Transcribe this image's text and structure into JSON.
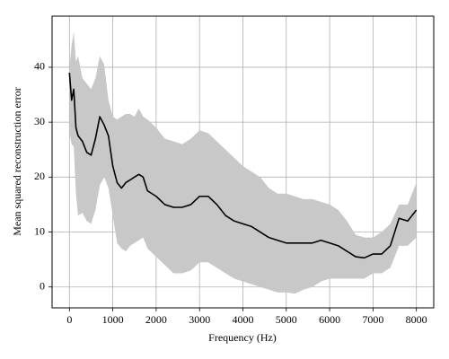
{
  "chart_data": {
    "type": "line",
    "xlabel": "Frequency (Hz)",
    "ylabel": "Mean squared reconstruction error",
    "x": [
      0,
      50,
      100,
      150,
      200,
      300,
      400,
      500,
      600,
      700,
      800,
      900,
      1000,
      1100,
      1200,
      1300,
      1400,
      1500,
      1600,
      1700,
      1800,
      2000,
      2200,
      2400,
      2600,
      2800,
      3000,
      3200,
      3400,
      3600,
      3800,
      4000,
      4200,
      4400,
      4600,
      4800,
      5000,
      5200,
      5400,
      5600,
      5800,
      6000,
      6200,
      6400,
      6600,
      6800,
      7000,
      7200,
      7400,
      7600,
      7800,
      8000
    ],
    "series": [
      {
        "color": "#000000",
        "band_color": "#c8c8c8",
        "values": [
          39,
          34,
          36,
          29,
          27.5,
          26.5,
          24.5,
          24,
          27,
          31,
          29.5,
          27.5,
          22,
          19,
          18,
          19,
          19.5,
          20,
          20.5,
          20,
          17.5,
          16.5,
          15,
          14.5,
          14.5,
          15,
          16.5,
          16.5,
          15,
          13,
          12,
          11.5,
          11,
          10,
          9,
          8.5,
          8,
          8,
          8,
          8,
          8.5,
          8,
          7.5,
          6.5,
          5.5,
          5.3,
          6,
          6,
          7.5,
          12.5,
          12,
          14
        ],
        "upper": [
          40,
          44,
          46.5,
          41,
          42,
          38,
          37,
          36,
          38,
          42,
          40.5,
          34,
          31,
          30.5,
          31,
          31.5,
          31.5,
          31,
          32.5,
          31,
          30.5,
          29,
          27,
          26.5,
          26,
          27,
          28.5,
          28,
          26.5,
          25,
          23.5,
          22,
          21,
          20,
          18,
          17,
          17,
          16.5,
          16,
          16,
          15.5,
          15,
          14,
          12,
          9.5,
          9,
          9,
          10,
          11.5,
          15,
          15,
          19
        ],
        "lower": [
          28,
          26,
          25.5,
          17,
          13,
          13.5,
          12,
          11.5,
          14,
          18.5,
          20,
          18,
          13,
          8,
          7,
          6.5,
          7.5,
          8,
          8.5,
          9,
          7,
          5.5,
          4,
          2.5,
          2.5,
          3,
          4.5,
          4.5,
          3.5,
          2.5,
          1.5,
          1,
          0.5,
          0,
          -0.5,
          -1,
          -1,
          -1.2,
          -0.5,
          0,
          1,
          1.5,
          1.5,
          1.5,
          1.5,
          1.5,
          2.5,
          2.5,
          3.5,
          7.5,
          7.5,
          9
        ]
      }
    ],
    "xlim": [
      -400,
      8400
    ],
    "ylim": [
      -3.8,
      49.3
    ],
    "xticks": [
      0,
      1000,
      2000,
      3000,
      4000,
      5000,
      6000,
      7000,
      8000
    ],
    "yticks": [
      0,
      10,
      20,
      30,
      40
    ],
    "grid": true
  }
}
